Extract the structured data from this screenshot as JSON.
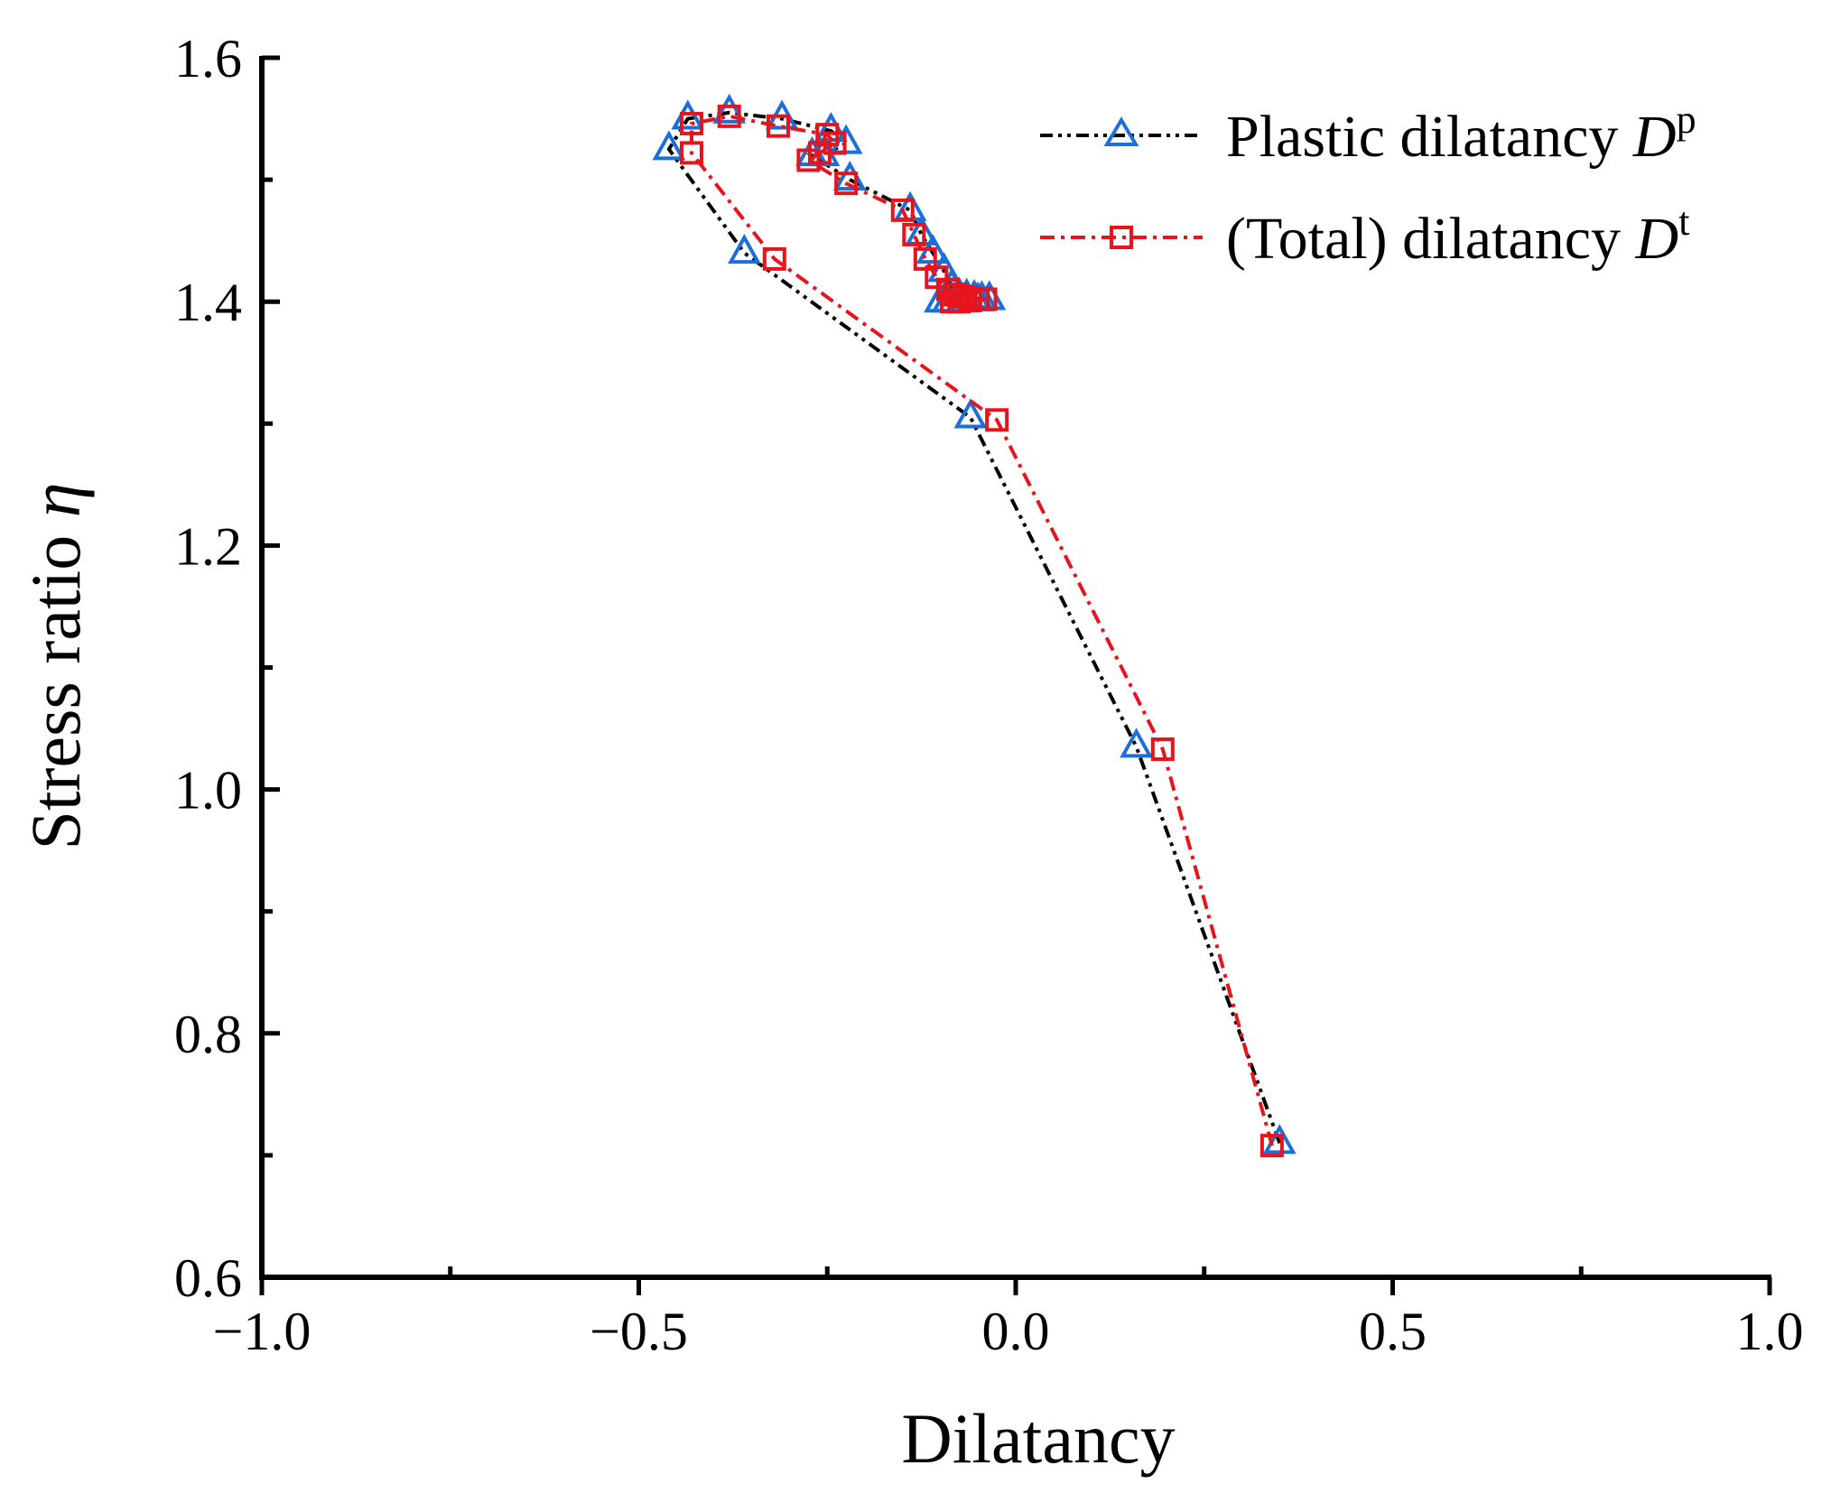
{
  "chart_data": {
    "type": "line",
    "xlabel": "Dilatancy",
    "ylabel": "Stress ratio",
    "ylabel_symbol": "η",
    "xlim": [
      -1.0,
      1.0
    ],
    "ylim": [
      0.6,
      1.6
    ],
    "xticks": [
      -1.0,
      -0.5,
      0.0,
      0.5,
      1.0
    ],
    "xtick_labels": [
      "−1.0",
      "−0.5",
      "0.0",
      "0.5",
      "1.0"
    ],
    "yticks": [
      0.6,
      0.8,
      1.0,
      1.2,
      1.4,
      1.6
    ],
    "ytick_labels": [
      "0.6",
      "0.8",
      "1.0",
      "1.2",
      "1.4",
      "1.6"
    ],
    "legend_position": "top-right",
    "series": [
      {
        "name": "Plastic dilatancy",
        "symbol": "D",
        "superscript": "p",
        "line_color": "#000000",
        "marker_color": "#1a6fd8",
        "marker": "triangle",
        "line_style": "dash-dot-dot",
        "points": [
          [
            0.35,
            0.71
          ],
          [
            0.16,
            1.035
          ],
          [
            -0.06,
            1.305
          ],
          [
            -0.36,
            1.44
          ],
          [
            -0.46,
            1.525
          ],
          [
            -0.435,
            1.55
          ],
          [
            -0.38,
            1.555
          ],
          [
            -0.31,
            1.55
          ],
          [
            -0.245,
            1.54
          ],
          [
            -0.225,
            1.53
          ],
          [
            -0.255,
            1.52
          ],
          [
            -0.27,
            1.52
          ],
          [
            -0.22,
            1.5
          ],
          [
            -0.14,
            1.475
          ],
          [
            -0.125,
            1.455
          ],
          [
            -0.11,
            1.44
          ],
          [
            -0.095,
            1.425
          ],
          [
            -0.085,
            1.412
          ],
          [
            -0.075,
            1.405
          ],
          [
            -0.065,
            1.404
          ],
          [
            -0.055,
            1.403
          ],
          [
            -0.045,
            1.402
          ],
          [
            -0.035,
            1.402
          ],
          [
            -0.05,
            1.401
          ],
          [
            -0.07,
            1.4
          ],
          [
            -0.09,
            1.4
          ],
          [
            -0.1,
            1.4
          ]
        ]
      },
      {
        "name": "(Total) dilatancy",
        "symbol": "D",
        "superscript": "t",
        "line_color": "#e8141c",
        "marker_color": "#e8141c",
        "marker": "square",
        "line_style": "dash-dot",
        "points": [
          [
            0.34,
            0.708
          ],
          [
            0.195,
            1.033
          ],
          [
            -0.025,
            1.303
          ],
          [
            -0.32,
            1.435
          ],
          [
            -0.43,
            1.522
          ],
          [
            -0.43,
            1.546
          ],
          [
            -0.38,
            1.552
          ],
          [
            -0.315,
            1.544
          ],
          [
            -0.25,
            1.537
          ],
          [
            -0.24,
            1.53
          ],
          [
            -0.26,
            1.522
          ],
          [
            -0.275,
            1.516
          ],
          [
            -0.225,
            1.497
          ],
          [
            -0.15,
            1.475
          ],
          [
            -0.135,
            1.455
          ],
          [
            -0.12,
            1.435
          ],
          [
            -0.105,
            1.42
          ],
          [
            -0.09,
            1.41
          ],
          [
            -0.08,
            1.406
          ],
          [
            -0.07,
            1.404
          ],
          [
            -0.06,
            1.403
          ],
          [
            -0.05,
            1.402
          ],
          [
            -0.04,
            1.402
          ],
          [
            -0.06,
            1.401
          ],
          [
            -0.075,
            1.4
          ],
          [
            -0.085,
            1.4
          ]
        ]
      }
    ]
  }
}
